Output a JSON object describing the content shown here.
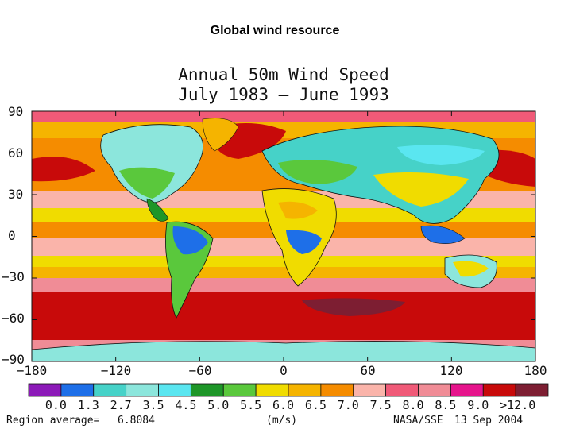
{
  "slide_title": "Global wind resource",
  "map": {
    "title_line1": "Annual 50m Wind Speed",
    "title_line2": "July 1983 – June 1993",
    "lat_ticks": [
      "90",
      "60",
      "30",
      "0",
      "−30",
      "−60",
      "−90"
    ],
    "lon_ticks": [
      "−180",
      "−120",
      "−60",
      "0",
      "60",
      "120",
      "180"
    ],
    "colorbar": {
      "labels": [
        "0.0",
        "1.3",
        "2.7",
        "3.5",
        "4.5",
        "5.0",
        "5.5",
        "6.0",
        "6.5",
        "7.0",
        "7.5",
        "8.0",
        "8.5",
        "9.0",
        ">12.0"
      ],
      "colors": [
        "#8c1ab8",
        "#1e6fe8",
        "#46d2c8",
        "#8ce6dc",
        "#5ae6f0",
        "#1e9628",
        "#5ac83c",
        "#f0dc00",
        "#f5b400",
        "#f58c00",
        "#fab4aa",
        "#f05a78",
        "#f08c96",
        "#e6148c",
        "#c80a0a",
        "#7d1e32"
      ]
    },
    "footer_left": "Region average=",
    "footer_value": "6.8084",
    "footer_units": "(m/s)",
    "footer_source": "NASA/SSE",
    "footer_date": "13 Sep 2004"
  }
}
